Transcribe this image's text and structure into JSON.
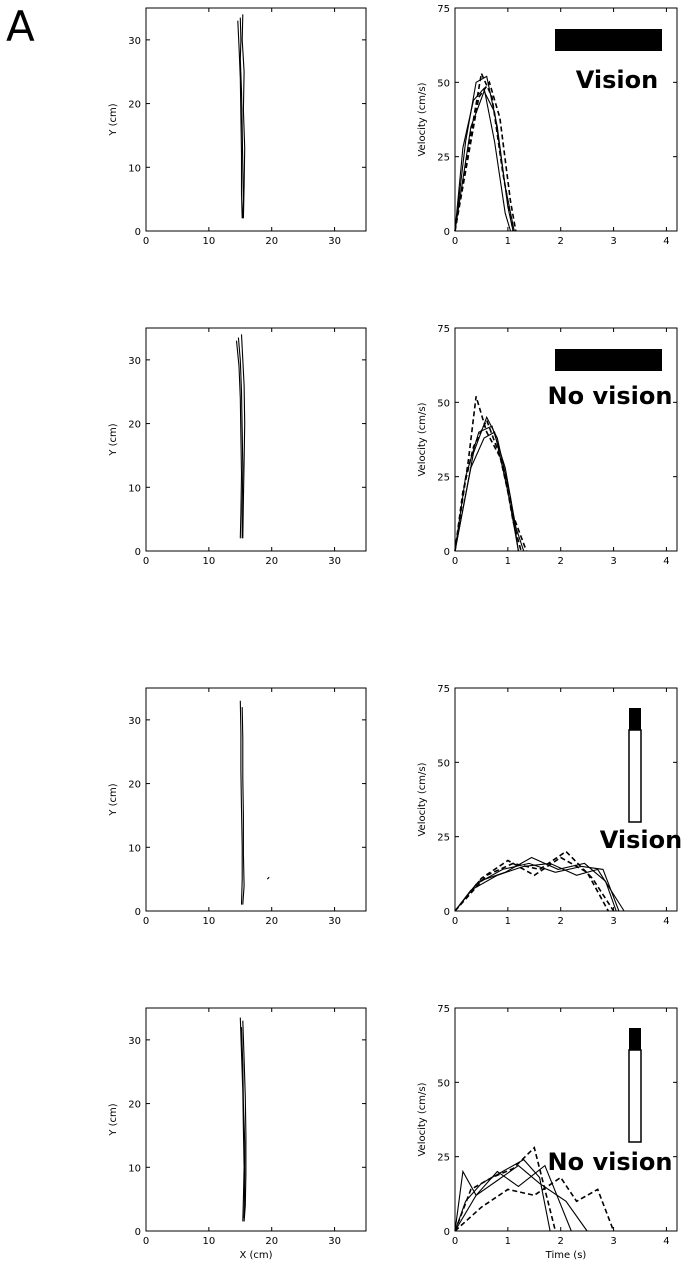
{
  "panel_label": "A",
  "chart_data": [
    {
      "type": "line",
      "row": 0,
      "kind": "path",
      "xlabel": "",
      "ylabel": "Y (cm)",
      "xlim": [
        0,
        35
      ],
      "ylim": [
        0,
        35
      ],
      "xticks": [
        0,
        10,
        20,
        30
      ],
      "yticks": [
        0,
        10,
        20,
        30
      ],
      "series": [
        {
          "x": [
            15.0,
            15.1,
            15.0,
            15.2,
            15.3,
            15.4,
            15.5,
            15.4
          ],
          "y": [
            33.5,
            30,
            27,
            22,
            16,
            10,
            5,
            2
          ]
        },
        {
          "x": [
            14.6,
            14.8,
            15.0,
            15.1,
            15.2,
            15.2,
            15.3
          ],
          "y": [
            33,
            29,
            24,
            18,
            12,
            6,
            2
          ]
        },
        {
          "x": [
            15.4,
            15.3,
            15.6,
            15.5,
            15.7,
            15.6,
            15.5
          ],
          "y": [
            34,
            30,
            25,
            19,
            13,
            7,
            2
          ]
        }
      ]
    },
    {
      "type": "line",
      "row": 0,
      "kind": "velocity",
      "xlabel": "",
      "ylabel": "Velocity (cm/s)",
      "xlim": [
        0,
        4.2
      ],
      "ylim": [
        0,
        75
      ],
      "xticks": [
        0,
        1,
        2,
        3,
        4
      ],
      "yticks": [
        0,
        25,
        50,
        75
      ],
      "condition": "Vision",
      "bar": "horizontal",
      "series": [
        {
          "x": [
            0,
            0.2,
            0.4,
            0.6,
            0.8,
            1.0,
            1.1
          ],
          "y": [
            0,
            30,
            50,
            52,
            35,
            8,
            0
          ]
        },
        {
          "x": [
            0,
            0.25,
            0.45,
            0.65,
            0.85,
            1.05,
            1.15
          ],
          "y": [
            0,
            25,
            45,
            50,
            38,
            10,
            0
          ]
        },
        {
          "x": [
            0,
            0.15,
            0.35,
            0.55,
            0.75,
            0.95,
            1.05
          ],
          "y": [
            0,
            28,
            44,
            48,
            30,
            6,
            0
          ]
        },
        {
          "x": [
            0,
            0.2,
            0.5,
            0.7,
            0.9,
            1.1
          ],
          "y": [
            0,
            22,
            53,
            45,
            20,
            0
          ]
        },
        {
          "x": [
            0,
            0.3,
            0.55,
            0.75,
            0.95,
            1.12
          ],
          "y": [
            0,
            35,
            47,
            40,
            15,
            0
          ]
        }
      ]
    },
    {
      "type": "line",
      "row": 1,
      "kind": "path",
      "xlabel": "",
      "ylabel": "Y (cm)",
      "xlim": [
        0,
        35
      ],
      "ylim": [
        0,
        35
      ],
      "xticks": [
        0,
        10,
        20,
        30
      ],
      "yticks": [
        0,
        10,
        20,
        30
      ],
      "series": [
        {
          "x": [
            14.7,
            15.0,
            15.2,
            15.3,
            15.4,
            15.3,
            15.3
          ],
          "y": [
            33.5,
            30,
            25,
            19,
            13,
            7,
            2
          ]
        },
        {
          "x": [
            14.4,
            14.8,
            15.0,
            15.1,
            15.2,
            15.1,
            15.0
          ],
          "y": [
            33,
            29,
            24,
            18,
            12,
            6,
            2
          ]
        },
        {
          "x": [
            15.2,
            15.4,
            15.6,
            15.7,
            15.6,
            15.5,
            15.4
          ],
          "y": [
            34,
            30,
            26,
            20,
            14,
            8,
            2
          ]
        }
      ]
    },
    {
      "type": "line",
      "row": 1,
      "kind": "velocity",
      "xlabel": "",
      "ylabel": "Velocity (cm/s)",
      "xlim": [
        0,
        4.2
      ],
      "ylim": [
        0,
        75
      ],
      "xticks": [
        0,
        1,
        2,
        3,
        4
      ],
      "yticks": [
        0,
        25,
        50,
        75
      ],
      "condition": "No vision",
      "bar": "horizontal",
      "series": [
        {
          "x": [
            0,
            0.2,
            0.45,
            0.7,
            0.95,
            1.15,
            1.3
          ],
          "y": [
            0,
            25,
            40,
            42,
            28,
            8,
            0
          ]
        },
        {
          "x": [
            0,
            0.25,
            0.4,
            0.6,
            0.9,
            1.1,
            1.25
          ],
          "y": [
            0,
            30,
            52,
            40,
            30,
            10,
            0
          ]
        },
        {
          "x": [
            0,
            0.3,
            0.55,
            0.75,
            1.0,
            1.2
          ],
          "y": [
            0,
            28,
            38,
            40,
            20,
            0
          ]
        },
        {
          "x": [
            0,
            0.15,
            0.35,
            0.6,
            0.85,
            1.1,
            1.35
          ],
          "y": [
            0,
            20,
            35,
            44,
            32,
            12,
            0
          ]
        },
        {
          "x": [
            0,
            0.35,
            0.6,
            0.8,
            1.05,
            1.2
          ],
          "y": [
            0,
            33,
            45,
            38,
            18,
            0
          ]
        }
      ]
    },
    {
      "type": "line",
      "row": 2,
      "kind": "path",
      "xlabel": "",
      "ylabel": "Y (cm)",
      "xlim": [
        0,
        35
      ],
      "ylim": [
        0,
        35
      ],
      "xticks": [
        0,
        10,
        20,
        30
      ],
      "yticks": [
        0,
        10,
        20,
        30
      ],
      "series": [
        {
          "x": [
            15.0,
            15.1,
            15.1,
            15.2,
            15.3,
            15.3,
            15.2
          ],
          "y": [
            33,
            28,
            22,
            16,
            10,
            5,
            1
          ]
        },
        {
          "x": [
            15.3,
            15.4,
            15.4,
            15.5,
            15.5,
            15.6,
            15.4
          ],
          "y": [
            32,
            27,
            21,
            15,
            9,
            4,
            1
          ]
        },
        {
          "x": [
            19.3,
            19.6
          ],
          "y": [
            5.0,
            5.3
          ]
        }
      ]
    },
    {
      "type": "line",
      "row": 2,
      "kind": "velocity",
      "xlabel": "",
      "ylabel": "Velocity (cm/s)",
      "xlim": [
        0,
        4.2
      ],
      "ylim": [
        0,
        75
      ],
      "xticks": [
        0,
        1,
        2,
        3,
        4
      ],
      "yticks": [
        0,
        25,
        50,
        75
      ],
      "condition": "Vision",
      "bar": "vertical",
      "series": [
        {
          "x": [
            0,
            0.4,
            0.9,
            1.4,
            1.9,
            2.4,
            2.8,
            3.1
          ],
          "y": [
            0,
            9,
            14,
            16,
            13,
            15,
            14,
            0
          ]
        },
        {
          "x": [
            0,
            0.5,
            1.0,
            1.5,
            2.0,
            2.5,
            2.9
          ],
          "y": [
            0,
            11,
            17,
            12,
            18,
            13,
            0
          ]
        },
        {
          "x": [
            0,
            0.3,
            0.8,
            1.3,
            1.8,
            2.3,
            2.7,
            3.2
          ],
          "y": [
            0,
            7,
            12,
            15,
            16,
            12,
            14,
            0
          ]
        },
        {
          "x": [
            0,
            0.6,
            1.1,
            1.6,
            2.1,
            2.6,
            3.0
          ],
          "y": [
            0,
            12,
            16,
            14,
            20,
            11,
            0
          ]
        },
        {
          "x": [
            0,
            0.45,
            0.95,
            1.45,
            1.95,
            2.45,
            2.85,
            3.05
          ],
          "y": [
            0,
            10,
            13,
            18,
            14,
            16,
            10,
            0
          ]
        }
      ]
    },
    {
      "type": "line",
      "row": 3,
      "kind": "path",
      "xlabel": "X (cm)",
      "ylabel": "Y (cm)",
      "xlim": [
        0,
        35
      ],
      "ylim": [
        0,
        35
      ],
      "xticks": [
        0,
        10,
        20,
        30
      ],
      "yticks": [
        0,
        10,
        20,
        30
      ],
      "series": [
        {
          "x": [
            15.0,
            15.2,
            15.4,
            15.5,
            15.6,
            15.5,
            15.4
          ],
          "y": [
            33.5,
            28,
            22,
            16,
            10,
            5,
            1.5
          ]
        },
        {
          "x": [
            15.4,
            15.6,
            15.8,
            15.9,
            15.9,
            15.8,
            15.6
          ],
          "y": [
            33,
            27,
            21,
            15,
            9,
            4,
            1.5
          ]
        },
        {
          "x": [
            15.2,
            15.4,
            15.5,
            15.7,
            15.7,
            15.6
          ],
          "y": [
            32,
            26,
            20,
            14,
            8,
            2
          ]
        }
      ]
    },
    {
      "type": "line",
      "row": 3,
      "kind": "velocity",
      "xlabel": "Time (s)",
      "ylabel": "Velocity (cm/s)",
      "xlim": [
        0,
        4.2
      ],
      "ylim": [
        0,
        75
      ],
      "xticks": [
        0,
        1,
        2,
        3,
        4
      ],
      "yticks": [
        0,
        25,
        50,
        75
      ],
      "condition": "No vision",
      "bar": "vertical",
      "series": [
        {
          "x": [
            0,
            0.2,
            0.5,
            0.9,
            1.3,
            1.6,
            1.8
          ],
          "y": [
            0,
            10,
            16,
            20,
            24,
            18,
            0
          ]
        },
        {
          "x": [
            0,
            0.3,
            0.7,
            1.1,
            1.5,
            1.9
          ],
          "y": [
            0,
            14,
            18,
            21,
            28,
            0
          ]
        },
        {
          "x": [
            0,
            0.15,
            0.4,
            0.8,
            1.2,
            1.6,
            2.1,
            2.5
          ],
          "y": [
            0,
            20,
            12,
            17,
            22,
            16,
            10,
            0
          ]
        },
        {
          "x": [
            0,
            0.5,
            1.0,
            1.5,
            2.0,
            2.3,
            2.7,
            3.0
          ],
          "y": [
            0,
            8,
            14,
            12,
            18,
            10,
            14,
            0
          ]
        },
        {
          "x": [
            0,
            0.4,
            0.8,
            1.2,
            1.7,
            2.2
          ],
          "y": [
            0,
            12,
            20,
            15,
            22,
            0
          ]
        }
      ]
    }
  ]
}
